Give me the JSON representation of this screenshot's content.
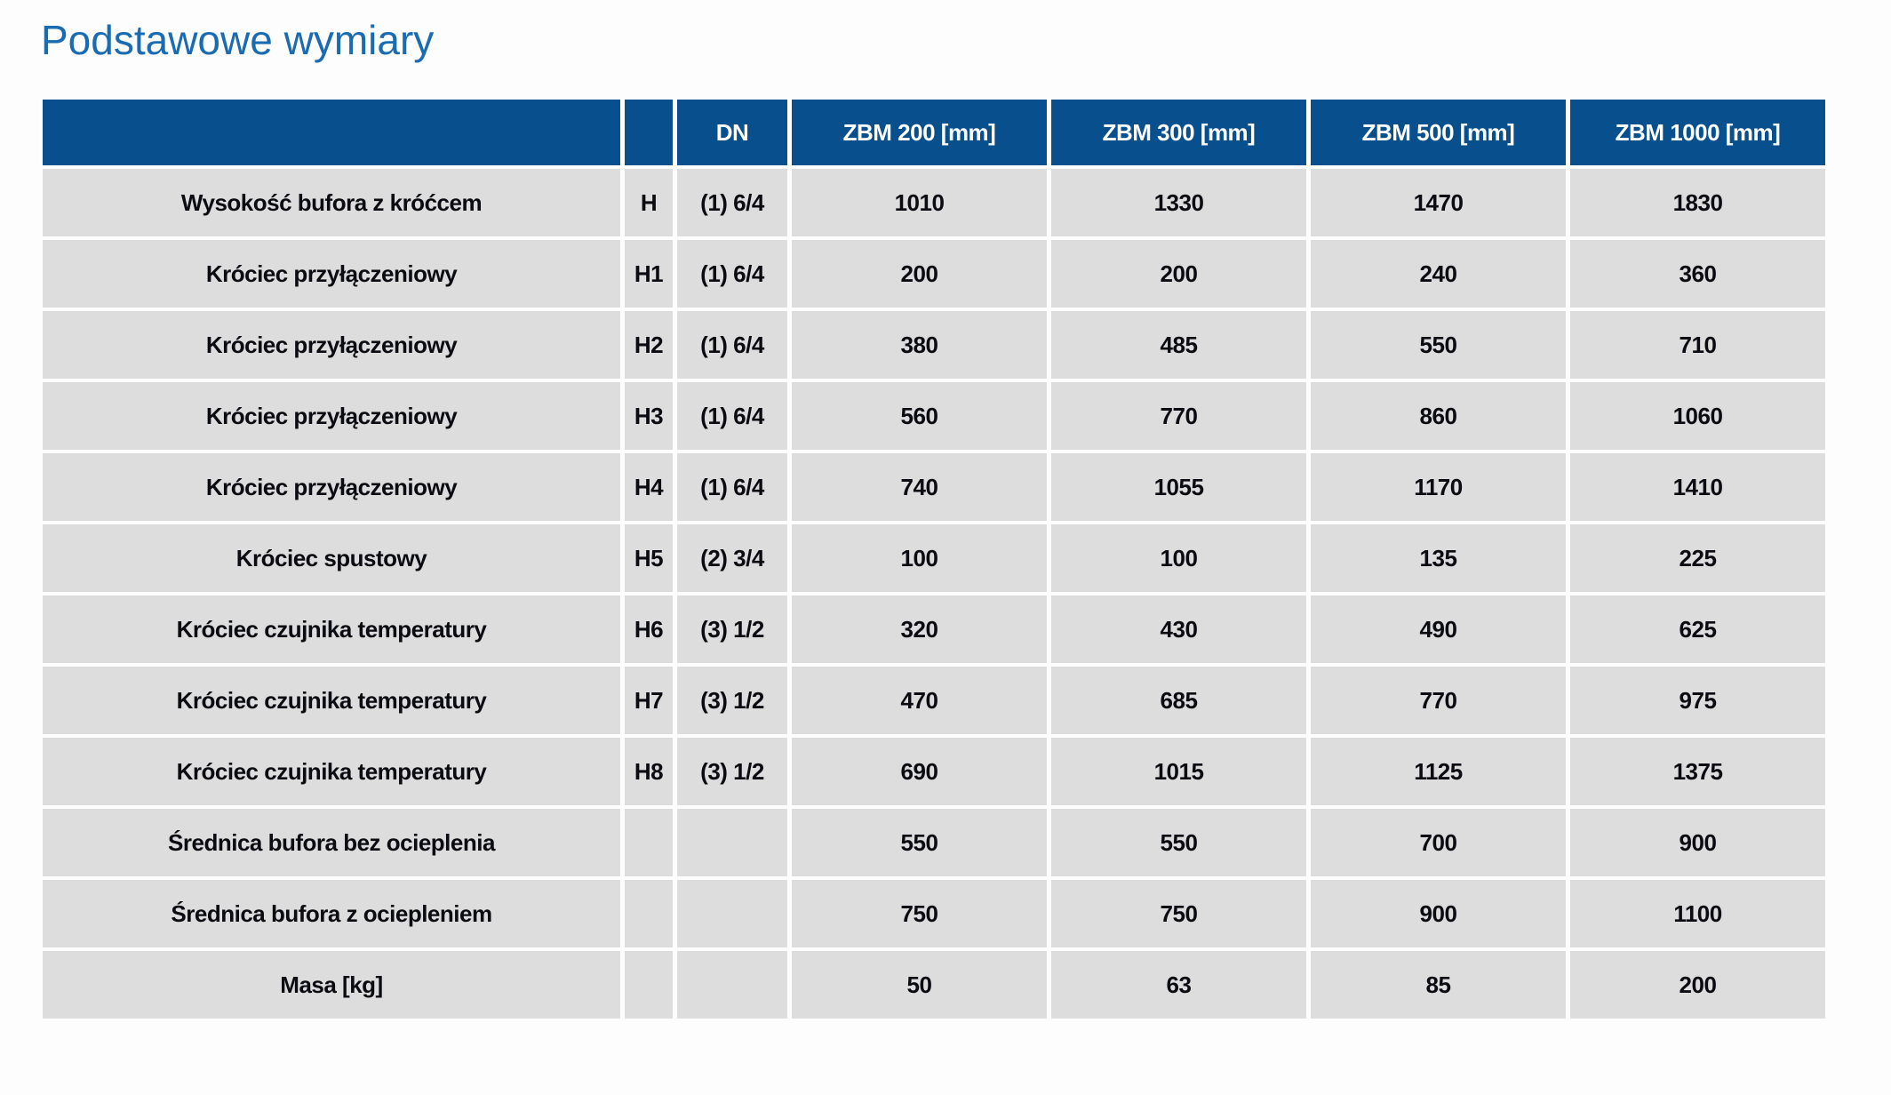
{
  "title": "Podstawowe wymiary",
  "colors": {
    "header_bg": "#074f8d",
    "row_bg": "#dddddd",
    "title_text": "#1a6cb2",
    "header_text": "#ffffff",
    "body_text": "#0b0b12",
    "page_bg": "#fdfdfd"
  },
  "table": {
    "columns": [
      "",
      "",
      "DN",
      "ZBM 200 [mm]",
      "ZBM 300 [mm]",
      "ZBM 500 [mm]",
      "ZBM 1000 [mm]"
    ],
    "rows": [
      {
        "label": "Wysokość bufora z króćcem",
        "symbol": "H",
        "dn": "(1) 6/4",
        "values": [
          "1010",
          "1330",
          "1470",
          "1830"
        ]
      },
      {
        "label": "Króciec przyłączeniowy",
        "symbol": "H1",
        "dn": "(1) 6/4",
        "values": [
          "200",
          "200",
          "240",
          "360"
        ]
      },
      {
        "label": "Króciec przyłączeniowy",
        "symbol": "H2",
        "dn": "(1) 6/4",
        "values": [
          "380",
          "485",
          "550",
          "710"
        ]
      },
      {
        "label": "Króciec przyłączeniowy",
        "symbol": "H3",
        "dn": "(1) 6/4",
        "values": [
          "560",
          "770",
          "860",
          "1060"
        ]
      },
      {
        "label": "Króciec przyłączeniowy",
        "symbol": "H4",
        "dn": "(1) 6/4",
        "values": [
          "740",
          "1055",
          "1170",
          "1410"
        ]
      },
      {
        "label": "Króciec spustowy",
        "symbol": "H5",
        "dn": "(2) 3/4",
        "values": [
          "100",
          "100",
          "135",
          "225"
        ]
      },
      {
        "label": "Króciec czujnika temperatury",
        "symbol": "H6",
        "dn": "(3) 1/2",
        "values": [
          "320",
          "430",
          "490",
          "625"
        ]
      },
      {
        "label": "Króciec czujnika temperatury",
        "symbol": "H7",
        "dn": "(3) 1/2",
        "values": [
          "470",
          "685",
          "770",
          "975"
        ]
      },
      {
        "label": "Króciec czujnika temperatury",
        "symbol": "H8",
        "dn": "(3) 1/2",
        "values": [
          "690",
          "1015",
          "1125",
          "1375"
        ]
      },
      {
        "label": "Średnica bufora bez ocieplenia",
        "symbol": "",
        "dn": "",
        "values": [
          "550",
          "550",
          "700",
          "900"
        ]
      },
      {
        "label": "Średnica bufora z ociepleniem",
        "symbol": "",
        "dn": "",
        "values": [
          "750",
          "750",
          "900",
          "1100"
        ]
      },
      {
        "label": "Masa [kg]",
        "symbol": "",
        "dn": "",
        "values": [
          "50",
          "63",
          "85",
          "200"
        ]
      }
    ]
  }
}
